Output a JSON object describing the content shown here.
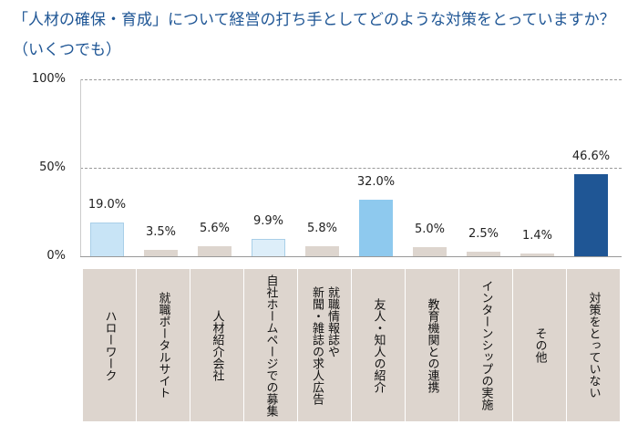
{
  "chart_data": {
    "type": "bar",
    "title": "「人材の確保・育成」について経営の打ち手としてどのような対策をとっていますか？（いくつでも）",
    "categories": [
      "ハローワーク",
      "就職ポータルサイト",
      "人材紹介会社",
      "自社ホームページでの募集",
      "就職情報誌や\n新聞・雑誌の求人広告",
      "友人・知人の紹介",
      "教育機関との連携",
      "インターンシップの実施",
      "その他",
      "対策をとっていない"
    ],
    "values": [
      19.0,
      3.5,
      5.6,
      9.9,
      5.8,
      32.0,
      5.0,
      2.5,
      1.4,
      46.6
    ],
    "value_labels": [
      "19.0%",
      "3.5%",
      "5.6%",
      "9.9%",
      "5.8%",
      "32.0%",
      "5.0%",
      "2.5%",
      "1.4%",
      "46.6%"
    ],
    "bar_colors": [
      "#c8e4f6",
      "#ddd5ce",
      "#ddd5ce",
      "#ddeef9",
      "#ddd5ce",
      "#8ec9ee",
      "#ddd5ce",
      "#ddd5ce",
      "#ddd5ce",
      "#1f5695"
    ],
    "yticks": [
      "100%",
      "50%",
      "0%"
    ],
    "ylim": [
      0,
      100
    ],
    "grid": true,
    "xlabel": "",
    "ylabel": ""
  }
}
